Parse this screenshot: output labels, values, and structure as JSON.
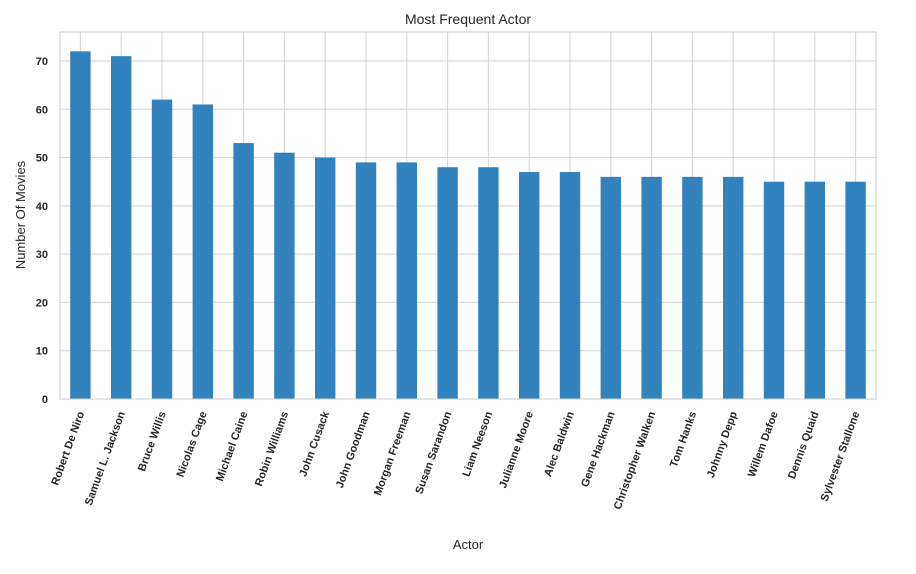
{
  "chart_data": {
    "type": "bar",
    "title": "Most Frequent Actor",
    "xlabel": "Actor",
    "ylabel": "Number Of Movies",
    "ylim": [
      0,
      76
    ],
    "yticks": [
      0,
      10,
      20,
      30,
      40,
      50,
      60,
      70
    ],
    "grid": true,
    "bar_color": "#3182bd",
    "categories": [
      "Robert De Niro",
      "Samuel L. Jackson",
      "Bruce Willis",
      "Nicolas Cage",
      "Michael Caine",
      "Robin Williams",
      "John Cusack",
      "John Goodman",
      "Morgan Freeman",
      "Susan Sarandon",
      "Liam Neeson",
      "Julianne Moore",
      "Alec Baldwin",
      "Gene Hackman",
      "Christopher Walken",
      "Tom Hanks",
      "Johnny Depp",
      "Willem Dafoe",
      "Dennis Quaid",
      "Sylvester Stallone"
    ],
    "values": [
      72,
      71,
      62,
      61,
      53,
      51,
      50,
      49,
      49,
      48,
      48,
      47,
      47,
      46,
      46,
      46,
      46,
      45,
      45,
      45
    ]
  }
}
